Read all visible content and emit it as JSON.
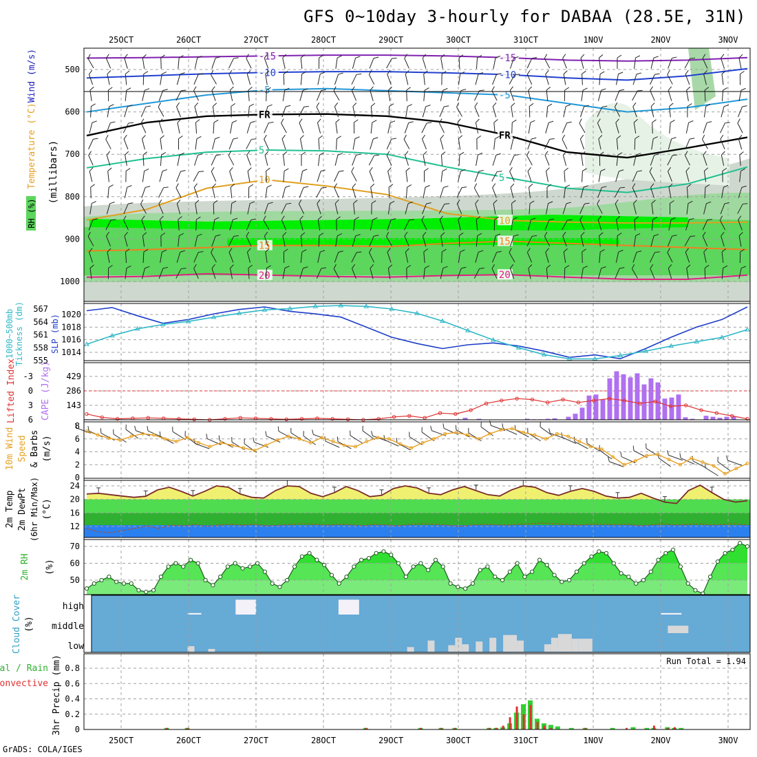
{
  "header": {
    "title": "GFS 0~10day 3-hourly for DABAA (28.5E, 31N)",
    "credit": "GrADS: COLA/IGES"
  },
  "colors": {
    "grid": "#a0a0a0",
    "rh_light": "#cfd8cf",
    "rh_mid": "#9fd99f",
    "rh_green": "#5cd65c",
    "rh_bright": "#00ee00",
    "slp": "#1c3cc8",
    "thickness": "#30b8c8",
    "cape_bar": "#b070f0",
    "lifted": "#e03030",
    "wind_speed": "#e8a020",
    "temp_fill": "#f0f070",
    "dew_fill": "#50dc50",
    "dew_dark": "#30b030",
    "blue_band": "#2b80f0",
    "rh2m_fill": "#30e030",
    "cloud_bg": "#66aad6",
    "cloud_fill": "#d8d8d8",
    "precip_total": "#30d030",
    "precip_conv": "#e03030"
  },
  "chart_data": [
    {
      "type": "line",
      "panel": "upper-air",
      "ylabel_parts": [
        {
          "text": "RH (%)",
          "color": "#30b030"
        },
        {
          "text": "Temperature (°C)",
          "color": "#e8a020"
        },
        {
          "text": "Wind (m/s)",
          "color": "#2020c0"
        }
      ],
      "ylabel2": "(millibars)",
      "yticks": [
        500,
        600,
        700,
        800,
        900,
        1000
      ],
      "ylim": [
        1000,
        450
      ],
      "top_dates": [
        "25OCT",
        "26OCT",
        "27OCT",
        "28OCT",
        "29OCT",
        "30OCT",
        "31OCT",
        "1NOV",
        "2NOV",
        "3NOV"
      ],
      "isotherms": [
        {
          "level": "-15",
          "color": "#8020b0",
          "values": [
            473,
            472,
            470,
            468,
            466,
            466,
            468,
            472,
            478,
            480,
            478,
            472
          ]
        },
        {
          "level": "-10",
          "color": "#2040d0",
          "values": [
            520,
            515,
            510,
            507,
            505,
            505,
            508,
            512,
            520,
            525,
            515,
            498
          ]
        },
        {
          "level": "-5",
          "color": "#2098d8",
          "values": [
            600,
            580,
            560,
            548,
            545,
            550,
            555,
            560,
            580,
            600,
            590,
            570
          ]
        },
        {
          "level": "FR",
          "color": "#000000",
          "values": [
            656,
            625,
            610,
            606,
            605,
            610,
            625,
            655,
            695,
            708,
            685,
            660
          ]
        },
        {
          "level": "5",
          "color": "#20c090",
          "values": [
            732,
            710,
            695,
            690,
            692,
            700,
            730,
            755,
            780,
            790,
            770,
            730
          ]
        },
        {
          "level": "10",
          "color": "#e0a020",
          "values": [
            855,
            830,
            780,
            760,
            775,
            795,
            840,
            856,
            860,
            862,
            862,
            860
          ]
        },
        {
          "level": "15",
          "color": "#f08020",
          "values": [
            928,
            925,
            920,
            915,
            915,
            918,
            910,
            905,
            910,
            915,
            920,
            925
          ]
        },
        {
          "level": "20",
          "color": "#e02080",
          "values": [
            990,
            988,
            982,
            985,
            988,
            990,
            986,
            984,
            990,
            995,
            995,
            985
          ]
        }
      ]
    },
    {
      "type": "line",
      "panel": "slp-thickness",
      "ylabel_left1": "1000~500mb",
      "ylabel_left2": "Tickness (dm)",
      "ylabel_right": "SLP (mb)",
      "left_ticks": [
        555,
        558,
        561,
        564,
        567
      ],
      "right_ticks": [
        1014,
        1016,
        1018,
        1020
      ],
      "series": [
        {
          "name": "SLP (mb)",
          "color": "#1c3cc8",
          "values": [
            1020.6,
            1021.1,
            1019.8,
            1018.6,
            1019.2,
            1020.1,
            1020.8,
            1021.2,
            1020.5,
            1020.1,
            1019.6,
            1018.0,
            1016.4,
            1015.4,
            1014.6,
            1015.2,
            1015.5,
            1015.0,
            1014.2,
            1013.2,
            1013.6,
            1013.0,
            1014.6,
            1016.4,
            1018.0,
            1019.2,
            1021.2
          ]
        },
        {
          "name": "1000~500mb Tickness (dm)",
          "color": "#30b8c8",
          "values": [
            558.8,
            560.8,
            562.4,
            563.4,
            564.1,
            565.1,
            566.0,
            566.8,
            567.1,
            567.6,
            567.8,
            567.6,
            567.0,
            566.0,
            564.2,
            562.0,
            559.8,
            558.0,
            556.4,
            555.4,
            555.4,
            556.2,
            557.2,
            558.4,
            559.4,
            560.4,
            562.2
          ]
        }
      ]
    },
    {
      "type": "bar",
      "panel": "cape-li",
      "ylabel_left": "Lifted Index",
      "ylabel_right": "CAPE (J/kg)",
      "li_ticks": [
        "-3",
        "0",
        "3",
        "6"
      ],
      "cape_ticks": [
        "143",
        "286",
        "429"
      ],
      "cape": [
        5,
        5,
        0,
        0,
        0,
        0,
        0,
        0,
        0,
        0,
        0,
        0,
        0,
        0,
        0,
        5,
        5,
        0,
        0,
        0,
        0,
        0,
        0,
        0,
        0,
        0,
        0,
        0,
        0,
        0,
        0,
        0,
        0,
        0,
        0,
        0,
        0,
        0,
        0,
        0,
        0,
        0,
        0,
        0,
        0,
        0,
        0,
        0,
        0,
        0,
        0,
        0,
        0,
        0,
        5,
        20,
        0,
        10,
        0,
        0,
        0,
        0,
        0,
        0,
        10,
        5,
        5,
        10,
        15,
        0,
        30,
        60,
        120,
        240,
        250,
        200,
        410,
        480,
        450,
        420,
        460,
        350,
        410,
        370,
        210,
        220,
        250,
        25,
        10,
        0,
        40,
        30,
        20,
        30,
        30,
        0,
        0
      ],
      "lifted_index": [
        4.8,
        5.5,
        5.8,
        5.7,
        5.6,
        5.7,
        5.8,
        5.9,
        6.0,
        5.8,
        5.6,
        5.7,
        5.8,
        5.9,
        5.8,
        5.7,
        5.8,
        5.9,
        6.0,
        5.8,
        5.4,
        5.2,
        5.6,
        4.6,
        4.8,
        4.0,
        2.6,
        2.0,
        1.6,
        1.8,
        2.4,
        1.8,
        2.4,
        2.0,
        1.6,
        2.0,
        2.6,
        2.2,
        3.2,
        3.0,
        4.0,
        4.6,
        5.2,
        5.8
      ]
    },
    {
      "type": "line",
      "panel": "wind10m",
      "ylabel1": "10m Wind",
      "ylabel2": "Speed",
      "ylabel3": "& Barbs",
      "ylabel4": "(m/s)",
      "ytick_labels": [
        "0",
        "2",
        "4",
        "6",
        "8"
      ],
      "ylim": [
        0,
        8
      ],
      "values": [
        7.2,
        6.6,
        6.1,
        5.8,
        6.4,
        6.8,
        6.6,
        6.0,
        5.6,
        6.2,
        5.4,
        4.8,
        5.4,
        5.0,
        4.6,
        4.2,
        5.0,
        5.8,
        6.4,
        6.0,
        5.4,
        6.2,
        5.6,
        5.0,
        4.8,
        5.6,
        6.2,
        6.0,
        5.2,
        4.6,
        5.4,
        6.0,
        6.8,
        7.0,
        6.6,
        6.0,
        6.8,
        7.4,
        7.6,
        7.0,
        6.6,
        6.0,
        6.8,
        6.4,
        5.6,
        4.8,
        4.4,
        3.2,
        2.0,
        2.6,
        3.4,
        3.6,
        2.8,
        2.0,
        3.0,
        2.4,
        1.8,
        0.6,
        1.4,
        2.2
      ]
    },
    {
      "type": "area",
      "panel": "temperature",
      "ylabel1": "2m Temp",
      "ylabel2": "2m DewPt",
      "ylabel3": "(6hr Min/Max)",
      "ylabel4": "(°C)",
      "yticks": [
        "12",
        "16",
        "20",
        "24"
      ],
      "ylim": [
        10,
        25
      ],
      "temp": [
        21.6,
        21.8,
        21.4,
        21.0,
        20.6,
        20.9,
        22.8,
        23.6,
        22.4,
        21.0,
        22.4,
        24.0,
        23.6,
        21.6,
        20.6,
        20.4,
        22.6,
        24.0,
        23.8,
        21.8,
        20.8,
        22.0,
        23.8,
        22.6,
        20.8,
        21.2,
        23.2,
        24.0,
        23.4,
        21.8,
        21.4,
        22.8,
        23.8,
        22.6,
        21.4,
        21.0,
        22.8,
        24.0,
        23.6,
        22.0,
        21.2,
        22.4,
        23.2,
        22.4,
        21.0,
        20.4,
        20.6,
        21.8,
        20.4,
        19.2,
        18.8,
        22.6,
        24.2,
        22.0,
        20.0,
        19.2,
        19.6
      ],
      "dew": [
        11.4,
        10.4,
        10.2,
        10.8,
        11.4,
        12.2,
        11.4,
        12.4,
        12.2,
        12.6,
        12.0,
        12.4,
        12.6,
        12.4,
        12.6,
        12.2,
        12.4,
        12.6,
        12.8,
        12.6,
        12.4,
        12.6,
        12.5,
        12.2,
        12.6,
        12.4,
        12.2,
        12.6,
        12.8,
        12.6,
        12.4,
        12.0,
        12.4,
        12.6,
        12.5,
        12.4,
        12.6,
        12.8,
        13.0,
        12.8,
        12.6,
        12.4,
        12.6,
        12.6,
        12.5,
        12.6,
        12.2,
        12.4,
        12.8,
        12.4,
        12.6,
        12.8,
        12.4,
        12.6,
        12.8,
        12.4
      ]
    },
    {
      "type": "area",
      "panel": "rh2m",
      "ylabel1": "2m RH",
      "ylabel2": "(%)",
      "yticks": [
        "50",
        "60",
        "70"
      ],
      "ylim": [
        40,
        77
      ],
      "values": [
        45,
        48,
        50,
        52,
        49,
        48,
        48,
        44,
        43,
        44,
        52,
        58,
        60,
        58,
        62,
        60,
        50,
        47,
        52,
        58,
        60,
        57,
        58,
        60,
        55,
        48,
        46,
        50,
        58,
        64,
        66,
        62,
        59,
        53,
        48,
        52,
        58,
        62,
        63,
        66,
        67,
        65,
        60,
        52,
        58,
        60,
        56,
        62,
        58,
        48,
        46,
        45,
        48,
        56,
        58,
        52,
        50,
        55,
        60,
        52,
        55,
        62,
        59,
        53,
        49,
        50,
        55,
        60,
        64,
        67,
        66,
        60,
        54,
        52,
        48,
        50,
        55,
        62,
        66,
        68,
        58,
        48,
        44,
        42,
        52,
        61,
        66,
        68,
        72,
        70
      ]
    },
    {
      "type": "bar",
      "panel": "cloud-cover",
      "ylabel1": "Cloud Cover",
      "ylabel2": "(%)",
      "levels": [
        "high",
        "middle",
        "low"
      ],
      "high": [
        {
          "start": 21,
          "end": 24,
          "pct": 80
        },
        {
          "start": 36,
          "end": 39,
          "pct": 80
        },
        {
          "start": 14,
          "end": 16,
          "pct": 8
        },
        {
          "start": 83,
          "end": 86,
          "pct": 8
        }
      ],
      "middle": [
        {
          "start": 84,
          "end": 87,
          "pct": 40
        }
      ],
      "low": [
        {
          "start": 14,
          "end": 15,
          "pct": 30
        },
        {
          "start": 17,
          "end": 18,
          "pct": 15
        },
        {
          "start": 46,
          "end": 47,
          "pct": 25
        },
        {
          "start": 49,
          "end": 50,
          "pct": 60
        },
        {
          "start": 52,
          "end": 53,
          "pct": 35
        },
        {
          "start": 53,
          "end": 54,
          "pct": 75
        },
        {
          "start": 54,
          "end": 55,
          "pct": 40
        },
        {
          "start": 56,
          "end": 57,
          "pct": 55
        },
        {
          "start": 58,
          "end": 59,
          "pct": 75
        },
        {
          "start": 60,
          "end": 62,
          "pct": 90
        },
        {
          "start": 62,
          "end": 63,
          "pct": 60
        },
        {
          "start": 66,
          "end": 67,
          "pct": 40
        },
        {
          "start": 67,
          "end": 68,
          "pct": 75
        },
        {
          "start": 68,
          "end": 70,
          "pct": 95
        },
        {
          "start": 70,
          "end": 71,
          "pct": 70
        },
        {
          "start": 71,
          "end": 73,
          "pct": 70
        }
      ]
    },
    {
      "type": "bar",
      "panel": "precip",
      "ylabel_left1": "Total / Rain",
      "ylabel_left2": "Convective",
      "ylabel": "3hr Precip (mm)",
      "run_total_label": "Run Total =",
      "run_total": "1.94",
      "yticks": [
        "0",
        "0.2",
        "0.4",
        "0.6",
        "0.8"
      ],
      "ylim": [
        0,
        0.95
      ],
      "bottom_dates": [
        "25OCT",
        "26OCT",
        "27OCT",
        "28OCT",
        "29OCT",
        "30OCT",
        "31OCT",
        "1NOV",
        "2NOV",
        "3NOV"
      ],
      "total": [
        {
          "i": 11,
          "v": 0.02
        },
        {
          "i": 14,
          "v": 0.02
        },
        {
          "i": 40,
          "v": 0.02
        },
        {
          "i": 48,
          "v": 0.02
        },
        {
          "i": 51,
          "v": 0.02
        },
        {
          "i": 53,
          "v": 0.02
        },
        {
          "i": 58,
          "v": 0.02
        },
        {
          "i": 59,
          "v": 0.02
        },
        {
          "i": 60,
          "v": 0.03
        },
        {
          "i": 61,
          "v": 0.08
        },
        {
          "i": 62,
          "v": 0.22
        },
        {
          "i": 63,
          "v": 0.33
        },
        {
          "i": 64,
          "v": 0.38
        },
        {
          "i": 65,
          "v": 0.14
        },
        {
          "i": 66,
          "v": 0.08
        },
        {
          "i": 67,
          "v": 0.06
        },
        {
          "i": 68,
          "v": 0.04
        },
        {
          "i": 70,
          "v": 0.02
        },
        {
          "i": 72,
          "v": 0.02
        },
        {
          "i": 76,
          "v": 0.02
        },
        {
          "i": 79,
          "v": 0.03
        },
        {
          "i": 81,
          "v": 0.02
        },
        {
          "i": 82,
          "v": 0.02
        },
        {
          "i": 84,
          "v": 0.03
        },
        {
          "i": 85,
          "v": 0.02
        },
        {
          "i": 86,
          "v": 0.02
        }
      ],
      "convective": [
        {
          "i": 11,
          "v": 0.02
        },
        {
          "i": 14,
          "v": 0.02
        },
        {
          "i": 40,
          "v": 0.02
        },
        {
          "i": 48,
          "v": 0.02
        },
        {
          "i": 51,
          "v": 0.02
        },
        {
          "i": 53,
          "v": 0.02
        },
        {
          "i": 58,
          "v": 0.02
        },
        {
          "i": 59,
          "v": 0.02
        },
        {
          "i": 60,
          "v": 0.05
        },
        {
          "i": 61,
          "v": 0.16
        },
        {
          "i": 62,
          "v": 0.3
        },
        {
          "i": 63,
          "v": 0.2
        },
        {
          "i": 64,
          "v": 0.32
        },
        {
          "i": 65,
          "v": 0.1
        },
        {
          "i": 66,
          "v": 0.05
        },
        {
          "i": 67,
          "v": 0.02
        },
        {
          "i": 72,
          "v": 0.02
        },
        {
          "i": 78,
          "v": 0.02
        },
        {
          "i": 82,
          "v": 0.05
        },
        {
          "i": 84,
          "v": 0.02
        },
        {
          "i": 85,
          "v": 0.03
        }
      ]
    }
  ]
}
